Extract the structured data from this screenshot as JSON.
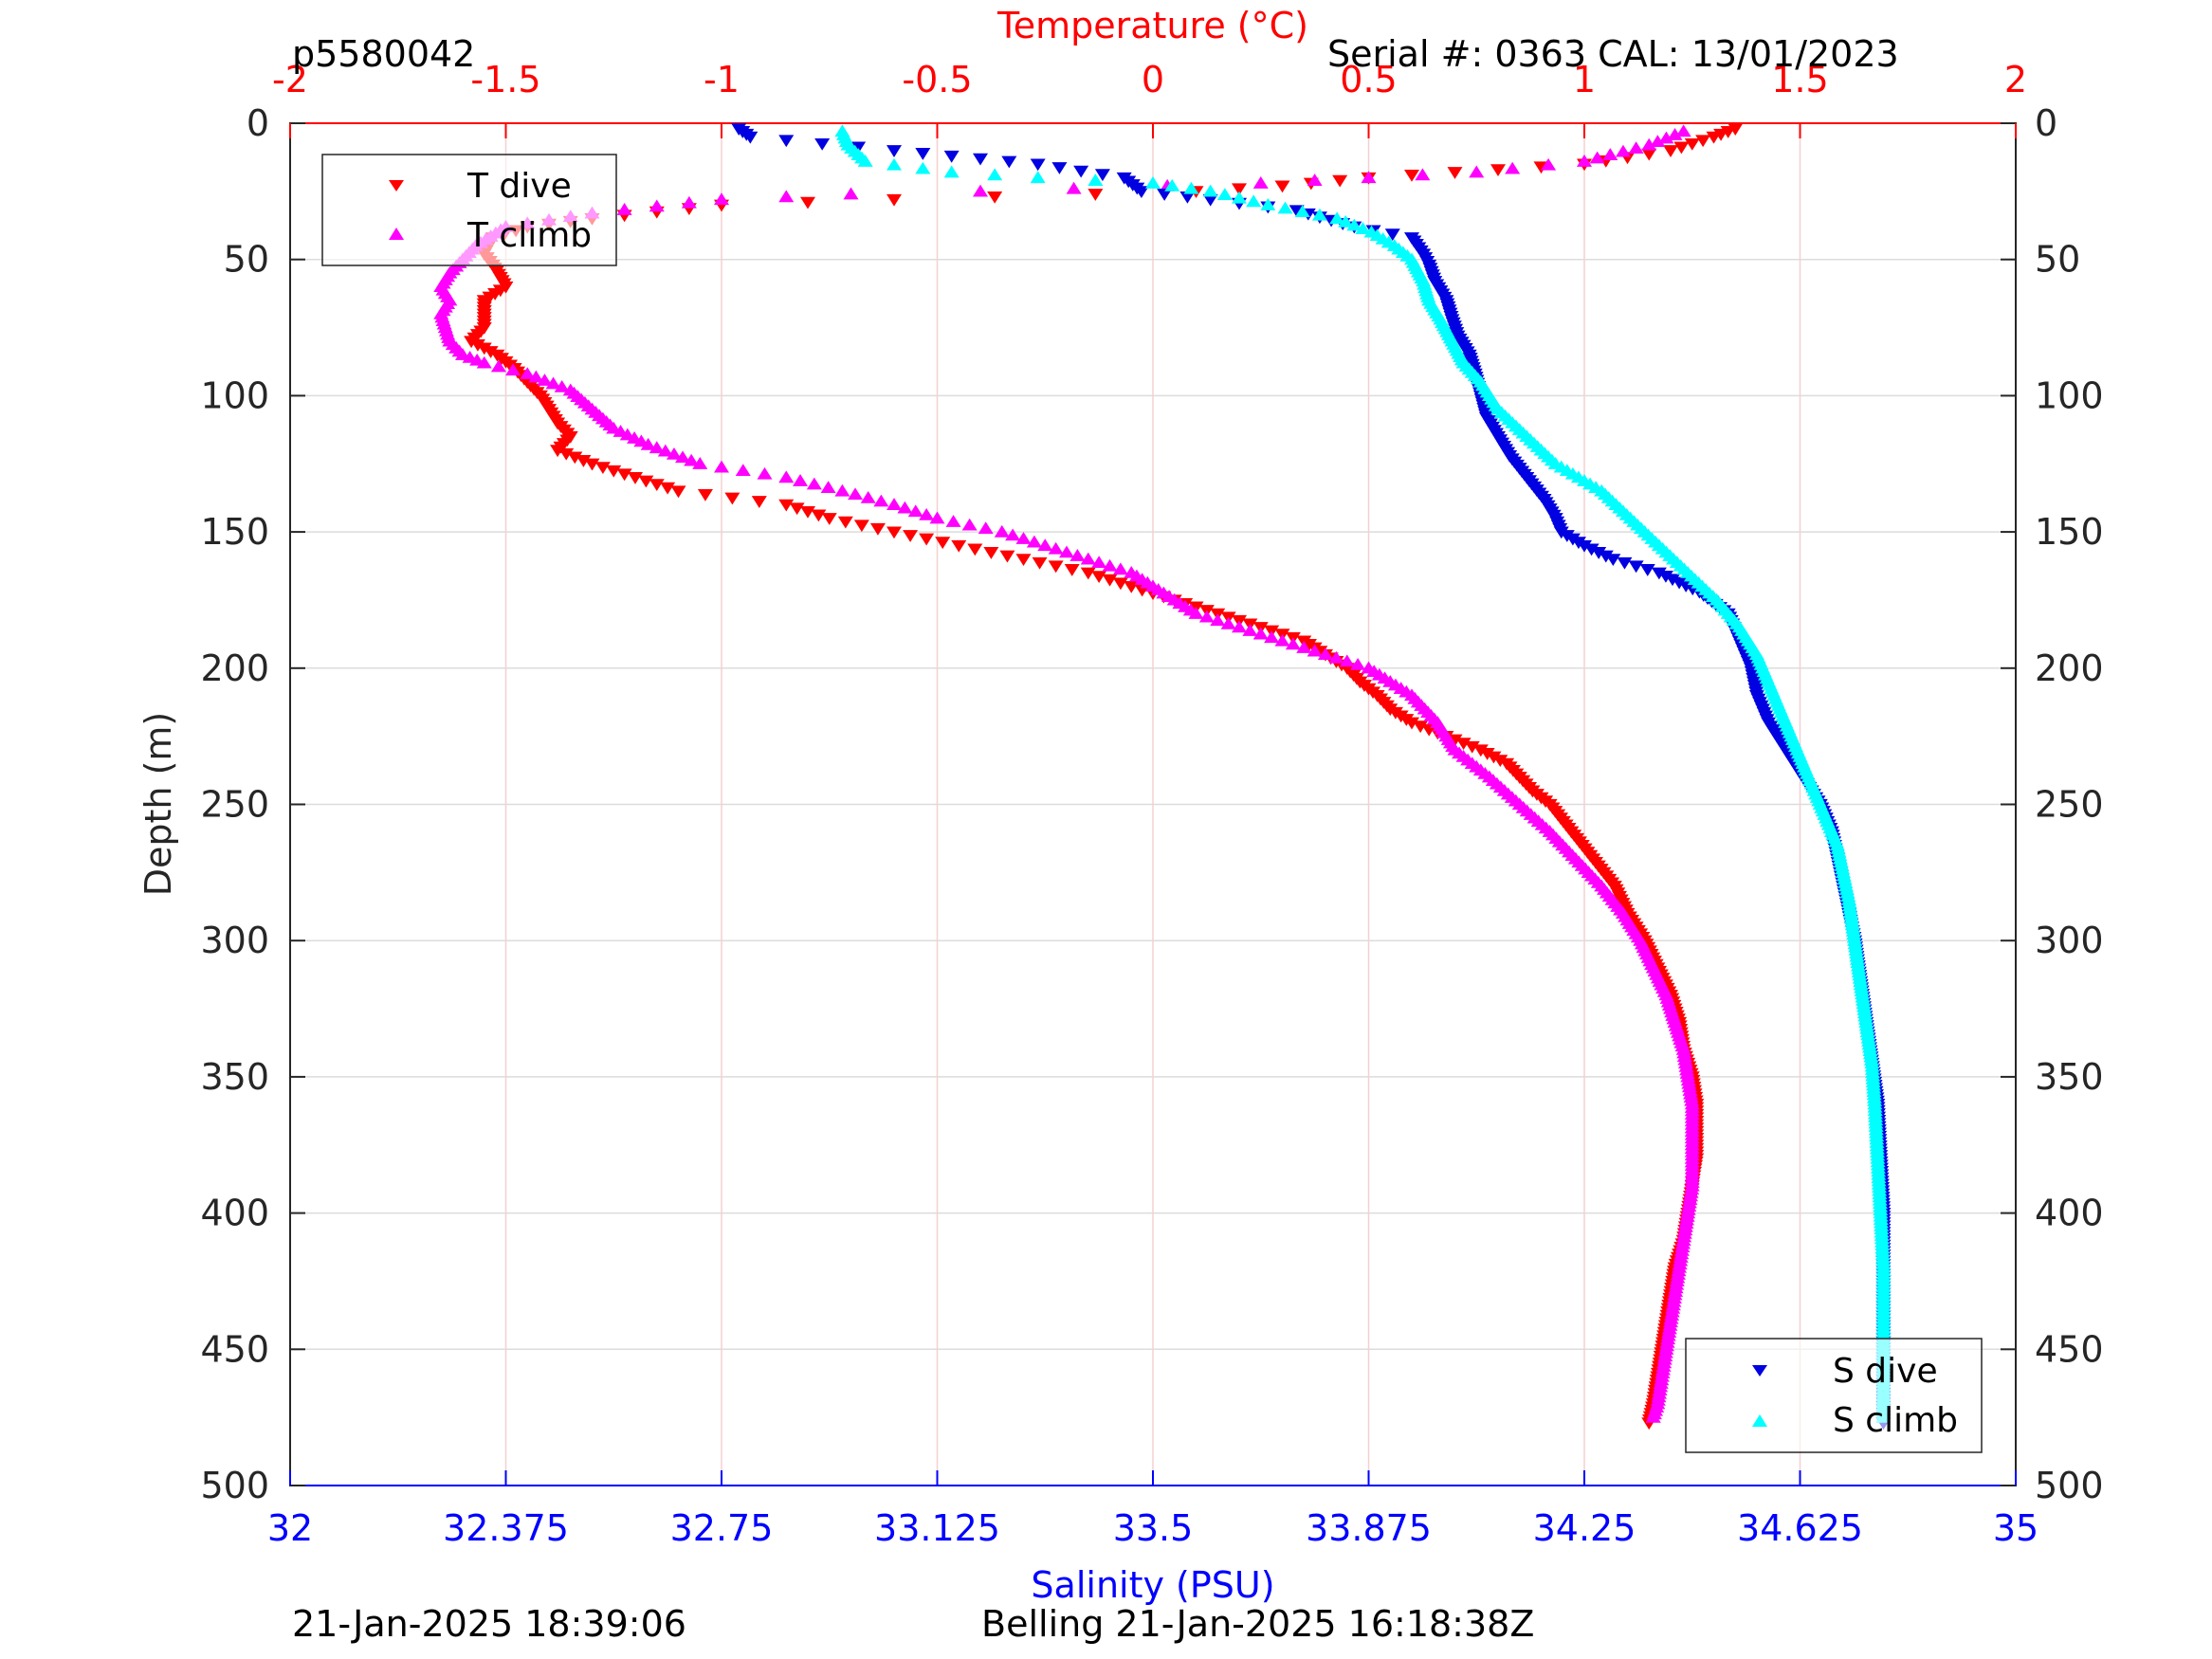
{
  "header": {
    "left_label": "p5580042",
    "right_label": "Serial #: 0363  CAL: 13/01/2023"
  },
  "footer": {
    "left_timestamp": "21-Jan-2025 18:39:06",
    "center_text": "Belling 21-Jan-2025 16:18:38Z"
  },
  "chart_data": {
    "type": "scatter",
    "y_axis": {
      "label": "Depth (m)",
      "range": [
        500,
        0
      ],
      "reversed": true,
      "ticks": [
        0,
        50,
        100,
        150,
        200,
        250,
        300,
        350,
        400,
        450,
        500
      ]
    },
    "x_axis_top": {
      "label": "Temperature (°C)",
      "range": [
        -2,
        2
      ],
      "ticks": [
        "-2",
        "-1.5",
        "-1",
        "-0.5",
        "0",
        "0.5",
        "1",
        "1.5",
        "2"
      ],
      "color": "#ff0000"
    },
    "x_axis_bottom": {
      "label": "Salinity (PSU)",
      "range": [
        32,
        35
      ],
      "ticks": [
        "32",
        "32.375",
        "32.75",
        "33.125",
        "33.5",
        "33.875",
        "34.25",
        "34.625",
        "35"
      ],
      "color": "#0000ff"
    },
    "grid": true,
    "legends": [
      {
        "placement": "top-left",
        "entries": [
          "T dive",
          "T climb"
        ]
      },
      {
        "placement": "bottom-right",
        "entries": [
          "S dive",
          "S climb"
        ]
      }
    ],
    "series": [
      {
        "name": "T dive",
        "axis": "temperature",
        "marker": "triangle-down",
        "color": "#ff0000",
        "points": [
          [
            1.35,
            2
          ],
          [
            1.3,
            5
          ],
          [
            1.2,
            10
          ],
          [
            1.0,
            15
          ],
          [
            0.7,
            18
          ],
          [
            0.5,
            20
          ],
          [
            0.3,
            23
          ],
          [
            0.1,
            25
          ],
          [
            -0.6,
            28
          ],
          [
            -1.0,
            30
          ],
          [
            -1.3,
            35
          ],
          [
            -1.45,
            38
          ],
          [
            -1.53,
            42
          ],
          [
            -1.55,
            48
          ],
          [
            -1.53,
            52
          ],
          [
            -1.5,
            60
          ],
          [
            -1.55,
            65
          ],
          [
            -1.55,
            70
          ],
          [
            -1.55,
            75
          ],
          [
            -1.58,
            80
          ],
          [
            -1.52,
            85
          ],
          [
            -1.48,
            90
          ],
          [
            -1.45,
            95
          ],
          [
            -1.42,
            100
          ],
          [
            -1.4,
            105
          ],
          [
            -1.38,
            110
          ],
          [
            -1.35,
            115
          ],
          [
            -1.38,
            120
          ],
          [
            -1.3,
            125
          ],
          [
            -1.2,
            130
          ],
          [
            -1.1,
            135
          ],
          [
            -0.85,
            140
          ],
          [
            -0.75,
            145
          ],
          [
            -0.6,
            150
          ],
          [
            -0.45,
            155
          ],
          [
            -0.3,
            160
          ],
          [
            -0.15,
            165
          ],
          [
            -0.05,
            170
          ],
          [
            0.05,
            175
          ],
          [
            0.15,
            180
          ],
          [
            0.25,
            185
          ],
          [
            0.35,
            190
          ],
          [
            0.4,
            195
          ],
          [
            0.45,
            200
          ],
          [
            0.48,
            205
          ],
          [
            0.52,
            210
          ],
          [
            0.55,
            215
          ],
          [
            0.6,
            220
          ],
          [
            0.68,
            225
          ],
          [
            0.76,
            230
          ],
          [
            0.82,
            235
          ],
          [
            0.85,
            240
          ],
          [
            0.88,
            245
          ],
          [
            0.92,
            250
          ],
          [
            0.97,
            260
          ],
          [
            1.02,
            270
          ],
          [
            1.07,
            280
          ],
          [
            1.1,
            290
          ],
          [
            1.14,
            300
          ],
          [
            1.17,
            310
          ],
          [
            1.2,
            320
          ],
          [
            1.22,
            330
          ],
          [
            1.23,
            340
          ],
          [
            1.25,
            350
          ],
          [
            1.26,
            360
          ],
          [
            1.26,
            370
          ],
          [
            1.26,
            380
          ],
          [
            1.25,
            390
          ],
          [
            1.24,
            400
          ],
          [
            1.23,
            410
          ],
          [
            1.21,
            420
          ],
          [
            1.2,
            430
          ],
          [
            1.19,
            440
          ],
          [
            1.18,
            450
          ],
          [
            1.17,
            460
          ],
          [
            1.16,
            470
          ],
          [
            1.15,
            477
          ]
        ]
      },
      {
        "name": "T climb",
        "axis": "temperature",
        "marker": "triangle-up",
        "color": "#ff00ff",
        "points": [
          [
            1.23,
            3
          ],
          [
            1.15,
            8
          ],
          [
            1.0,
            14
          ],
          [
            0.75,
            18
          ],
          [
            0.5,
            20
          ],
          [
            0.25,
            22
          ],
          [
            -0.4,
            25
          ],
          [
            -0.7,
            26
          ],
          [
            -1.0,
            28
          ],
          [
            -1.3,
            33
          ],
          [
            -1.5,
            38
          ],
          [
            -1.57,
            45
          ],
          [
            -1.6,
            50
          ],
          [
            -1.63,
            55
          ],
          [
            -1.65,
            60
          ],
          [
            -1.63,
            65
          ],
          [
            -1.65,
            70
          ],
          [
            -1.64,
            75
          ],
          [
            -1.63,
            80
          ],
          [
            -1.6,
            85
          ],
          [
            -1.55,
            88
          ],
          [
            -1.45,
            92
          ],
          [
            -1.35,
            98
          ],
          [
            -1.3,
            105
          ],
          [
            -1.25,
            112
          ],
          [
            -1.17,
            118
          ],
          [
            -1.05,
            125
          ],
          [
            -0.85,
            130
          ],
          [
            -0.72,
            135
          ],
          [
            -0.6,
            140
          ],
          [
            -0.5,
            145
          ],
          [
            -0.35,
            150
          ],
          [
            -0.25,
            155
          ],
          [
            -0.15,
            160
          ],
          [
            -0.05,
            165
          ],
          [
            0.0,
            170
          ],
          [
            0.05,
            175
          ],
          [
            0.1,
            180
          ],
          [
            0.2,
            185
          ],
          [
            0.3,
            190
          ],
          [
            0.4,
            195
          ],
          [
            0.5,
            200
          ],
          [
            0.6,
            210
          ],
          [
            0.66,
            220
          ],
          [
            0.7,
            230
          ],
          [
            0.78,
            240
          ],
          [
            0.85,
            250
          ],
          [
            0.92,
            260
          ],
          [
            0.98,
            270
          ],
          [
            1.04,
            280
          ],
          [
            1.09,
            290
          ],
          [
            1.13,
            300
          ],
          [
            1.16,
            310
          ],
          [
            1.19,
            320
          ],
          [
            1.21,
            330
          ],
          [
            1.23,
            340
          ],
          [
            1.24,
            350
          ],
          [
            1.25,
            360
          ],
          [
            1.25,
            370
          ],
          [
            1.25,
            380
          ],
          [
            1.25,
            390
          ],
          [
            1.24,
            400
          ],
          [
            1.23,
            410
          ],
          [
            1.22,
            420
          ],
          [
            1.21,
            430
          ],
          [
            1.2,
            440
          ],
          [
            1.19,
            450
          ],
          [
            1.18,
            460
          ],
          [
            1.17,
            470
          ],
          [
            1.16,
            475
          ]
        ]
      },
      {
        "name": "S dive",
        "axis": "salinity",
        "marker": "triangle-down",
        "color": "#0000e0",
        "points": [
          [
            32.78,
            2
          ],
          [
            32.8,
            5
          ],
          [
            33.05,
            10
          ],
          [
            33.15,
            12
          ],
          [
            33.3,
            15
          ],
          [
            33.45,
            20
          ],
          [
            33.48,
            25
          ],
          [
            33.6,
            28
          ],
          [
            33.75,
            32
          ],
          [
            33.85,
            38
          ],
          [
            33.95,
            42
          ],
          [
            33.97,
            48
          ],
          [
            33.98,
            52
          ],
          [
            33.99,
            58
          ],
          [
            34.01,
            65
          ],
          [
            34.02,
            72
          ],
          [
            34.03,
            78
          ],
          [
            34.05,
            85
          ],
          [
            34.06,
            92
          ],
          [
            34.07,
            100
          ],
          [
            34.08,
            108
          ],
          [
            34.1,
            115
          ],
          [
            34.12,
            122
          ],
          [
            34.15,
            130
          ],
          [
            34.18,
            138
          ],
          [
            34.2,
            145
          ],
          [
            34.21,
            150
          ],
          [
            34.25,
            155
          ],
          [
            34.3,
            160
          ],
          [
            34.38,
            165
          ],
          [
            34.45,
            172
          ],
          [
            34.5,
            180
          ],
          [
            34.52,
            190
          ],
          [
            34.54,
            200
          ],
          [
            34.55,
            210
          ],
          [
            34.57,
            220
          ],
          [
            34.6,
            230
          ],
          [
            34.63,
            240
          ],
          [
            34.66,
            250
          ],
          [
            34.68,
            260
          ],
          [
            34.69,
            270
          ],
          [
            34.7,
            280
          ],
          [
            34.71,
            290
          ],
          [
            34.72,
            300
          ],
          [
            34.73,
            315
          ],
          [
            34.74,
            330
          ],
          [
            34.75,
            345
          ],
          [
            34.76,
            360
          ],
          [
            34.765,
            380
          ],
          [
            34.77,
            400
          ],
          [
            34.77,
            420
          ],
          [
            34.77,
            440
          ],
          [
            34.77,
            460
          ],
          [
            34.77,
            477
          ]
        ]
      },
      {
        "name": "S climb",
        "axis": "salinity",
        "marker": "triangle-up",
        "color": "#00ffff",
        "points": [
          [
            32.96,
            3
          ],
          [
            32.97,
            8
          ],
          [
            33.0,
            14
          ],
          [
            33.15,
            18
          ],
          [
            33.3,
            20
          ],
          [
            33.5,
            22
          ],
          [
            33.6,
            25
          ],
          [
            33.7,
            30
          ],
          [
            33.82,
            35
          ],
          [
            33.88,
            40
          ],
          [
            33.92,
            45
          ],
          [
            33.95,
            50
          ],
          [
            33.97,
            58
          ],
          [
            33.98,
            65
          ],
          [
            34.0,
            72
          ],
          [
            34.02,
            80
          ],
          [
            34.04,
            88
          ],
          [
            34.07,
            95
          ],
          [
            34.1,
            105
          ],
          [
            34.15,
            115
          ],
          [
            34.2,
            125
          ],
          [
            34.28,
            135
          ],
          [
            34.33,
            145
          ],
          [
            34.38,
            155
          ],
          [
            34.43,
            165
          ],
          [
            34.48,
            175
          ],
          [
            34.52,
            185
          ],
          [
            34.55,
            195
          ],
          [
            34.57,
            205
          ],
          [
            34.59,
            215
          ],
          [
            34.61,
            225
          ],
          [
            34.63,
            235
          ],
          [
            34.65,
            245
          ],
          [
            34.67,
            255
          ],
          [
            34.69,
            265
          ],
          [
            34.7,
            275
          ],
          [
            34.71,
            285
          ],
          [
            34.72,
            300
          ],
          [
            34.73,
            315
          ],
          [
            34.74,
            330
          ],
          [
            34.75,
            345
          ],
          [
            34.755,
            360
          ],
          [
            34.76,
            380
          ],
          [
            34.765,
            400
          ],
          [
            34.77,
            420
          ],
          [
            34.77,
            440
          ],
          [
            34.77,
            460
          ],
          [
            34.77,
            475
          ]
        ]
      }
    ]
  }
}
